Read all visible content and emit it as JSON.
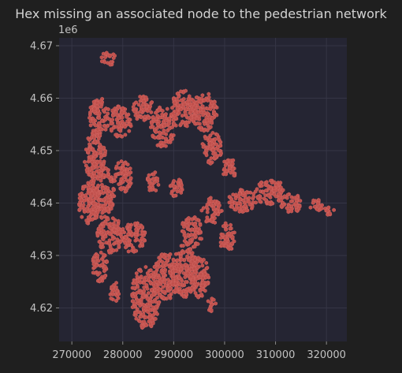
{
  "chart_data": {
    "type": "scatter",
    "title": "Hex missing an associated node to the pedestrian network",
    "y_offset_label": "1e6",
    "xlabel": "",
    "ylabel": "",
    "xlim": [
      267500,
      324000
    ],
    "ylim": [
      4.6136,
      4.6715
    ],
    "x_ticks": [
      270000,
      280000,
      290000,
      300000,
      310000,
      320000
    ],
    "x_tick_labels": [
      "270000",
      "280000",
      "290000",
      "300000",
      "310000",
      "320000"
    ],
    "y_ticks": [
      4.62,
      4.63,
      4.64,
      4.65,
      4.66,
      4.67
    ],
    "y_tick_labels": [
      "4.62",
      "4.63",
      "4.64",
      "4.65",
      "4.66",
      "4.67"
    ],
    "grid": true,
    "legend": "none",
    "marker": "hexagon",
    "colors": {
      "figure_bg": "#1f1f1f",
      "axes_bg": "#252533",
      "grid": "#353545",
      "marker": "#c0504c",
      "marker_edge": "#d66a66"
    },
    "clusters": [
      {
        "x": 277200,
        "y": 4.6675,
        "rx": 1500,
        "ry": 0.0013
      },
      {
        "x": 275400,
        "y": 4.6565,
        "rx": 2000,
        "ry": 0.0035
      },
      {
        "x": 279500,
        "y": 4.6555,
        "rx": 2200,
        "ry": 0.003
      },
      {
        "x": 284000,
        "y": 4.658,
        "rx": 2000,
        "ry": 0.0025
      },
      {
        "x": 288000,
        "y": 4.6545,
        "rx": 2500,
        "ry": 0.004
      },
      {
        "x": 292000,
        "y": 4.658,
        "rx": 2500,
        "ry": 0.0035
      },
      {
        "x": 296000,
        "y": 4.6575,
        "rx": 2600,
        "ry": 0.0038
      },
      {
        "x": 297500,
        "y": 4.6505,
        "rx": 2000,
        "ry": 0.003
      },
      {
        "x": 301000,
        "y": 4.6465,
        "rx": 1500,
        "ry": 0.002
      },
      {
        "x": 274500,
        "y": 4.649,
        "rx": 2200,
        "ry": 0.0045
      },
      {
        "x": 273500,
        "y": 4.64,
        "rx": 2200,
        "ry": 0.004
      },
      {
        "x": 276000,
        "y": 4.642,
        "rx": 2500,
        "ry": 0.005
      },
      {
        "x": 280000,
        "y": 4.645,
        "rx": 1800,
        "ry": 0.003
      },
      {
        "x": 277500,
        "y": 4.634,
        "rx": 2500,
        "ry": 0.0035
      },
      {
        "x": 282000,
        "y": 4.6335,
        "rx": 2500,
        "ry": 0.003
      },
      {
        "x": 275500,
        "y": 4.628,
        "rx": 1500,
        "ry": 0.003
      },
      {
        "x": 284500,
        "y": 4.622,
        "rx": 2800,
        "ry": 0.006
      },
      {
        "x": 288500,
        "y": 4.626,
        "rx": 2500,
        "ry": 0.0045
      },
      {
        "x": 292000,
        "y": 4.627,
        "rx": 2500,
        "ry": 0.005
      },
      {
        "x": 295000,
        "y": 4.626,
        "rx": 2000,
        "ry": 0.004
      },
      {
        "x": 293500,
        "y": 4.6345,
        "rx": 2200,
        "ry": 0.003
      },
      {
        "x": 297500,
        "y": 4.6385,
        "rx": 2000,
        "ry": 0.0025
      },
      {
        "x": 300500,
        "y": 4.6335,
        "rx": 1500,
        "ry": 0.003
      },
      {
        "x": 303500,
        "y": 4.6405,
        "rx": 2800,
        "ry": 0.0022
      },
      {
        "x": 309000,
        "y": 4.642,
        "rx": 3000,
        "ry": 0.0025
      },
      {
        "x": 313000,
        "y": 4.64,
        "rx": 2000,
        "ry": 0.002
      },
      {
        "x": 318000,
        "y": 4.6395,
        "rx": 1200,
        "ry": 0.0012
      },
      {
        "x": 320500,
        "y": 4.6385,
        "rx": 1000,
        "ry": 0.001
      },
      {
        "x": 286000,
        "y": 4.644,
        "rx": 1200,
        "ry": 0.002
      },
      {
        "x": 290500,
        "y": 4.643,
        "rx": 1200,
        "ry": 0.002
      },
      {
        "x": 297500,
        "y": 4.6205,
        "rx": 900,
        "ry": 0.0015
      },
      {
        "x": 278500,
        "y": 4.623,
        "rx": 1000,
        "ry": 0.002
      }
    ]
  }
}
